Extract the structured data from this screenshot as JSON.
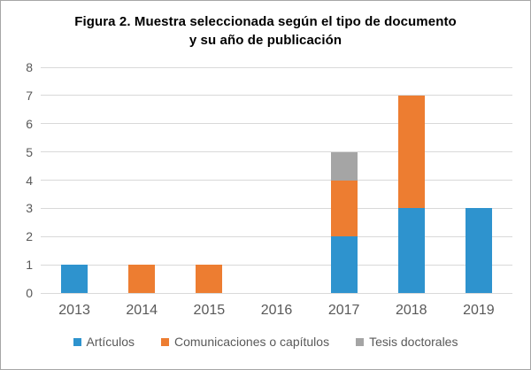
{
  "title": {
    "line1": "Figura 2. Muestra seleccionada según el tipo de documento",
    "line2": "y su año de publicación"
  },
  "colors": {
    "articulos": "#2E93CE",
    "comunicaciones": "#ED7D31",
    "tesis": "#A5A5A5",
    "gridline": "#D9D9D9",
    "axis_text": "#595959",
    "title_text": "#000000",
    "border": "#A6A6A6"
  },
  "chart_data": {
    "type": "bar",
    "stacked": true,
    "title": "Figura 2. Muestra seleccionada según el tipo de documento y su año de publicación",
    "categories": [
      "2013",
      "2014",
      "2015",
      "2016",
      "2017",
      "2018",
      "2019"
    ],
    "series": [
      {
        "name": "Artículos",
        "color": "#2E93CE",
        "values": [
          1,
          0,
          0,
          0,
          2,
          3,
          3
        ]
      },
      {
        "name": "Comunicaciones o capítulos",
        "color": "#ED7D31",
        "values": [
          0,
          1,
          1,
          0,
          2,
          4,
          0
        ]
      },
      {
        "name": "Tesis doctorales",
        "color": "#A5A5A5",
        "values": [
          0,
          0,
          0,
          0,
          1,
          0,
          0
        ]
      }
    ],
    "xlabel": "",
    "ylabel": "",
    "ylim": [
      0,
      8
    ],
    "yticks": [
      0,
      1,
      2,
      3,
      4,
      5,
      6,
      7,
      8
    ],
    "grid": true,
    "legend_position": "bottom"
  }
}
